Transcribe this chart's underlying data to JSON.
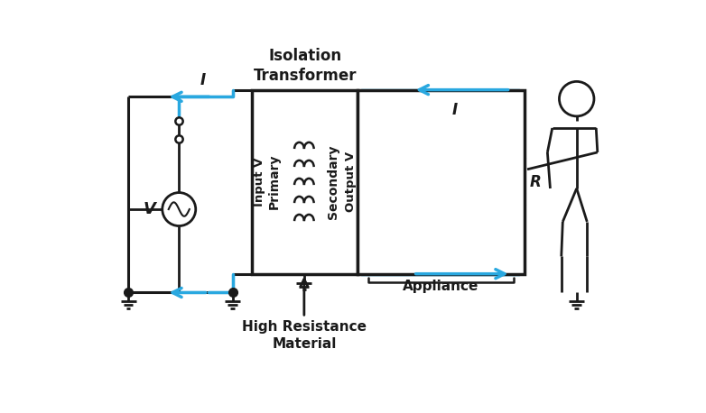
{
  "bg_color": "#ffffff",
  "lc": "#1a1a1a",
  "bc": "#29a8e0",
  "title_line1": "Isolation",
  "title_line2": "Transformer",
  "label_primary": "Primary",
  "label_secondary": "Secondary",
  "label_inputv": "Input V",
  "label_outputv": "Output V",
  "label_hrm1": "High Resistance",
  "label_hrm2": "Material",
  "label_appliance": "Appliance",
  "label_v": "V",
  "label_i": "I",
  "label_r": "R",
  "figw": 7.82,
  "figh": 4.58,
  "dpi": 100
}
